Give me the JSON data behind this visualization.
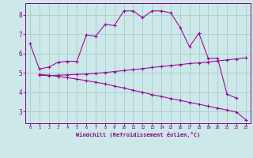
{
  "background_color": "#cce8e8",
  "grid_color": "#aacccc",
  "line_color": "#990099",
  "xlabel": "Windchill (Refroidissement éolien,°C)",
  "xlabel_color": "#880088",
  "tick_color": "#880088",
  "spine_color": "#880088",
  "xlim": [
    -0.5,
    23.5
  ],
  "ylim": [
    2.4,
    8.6
  ],
  "yticks": [
    3,
    4,
    5,
    6,
    7,
    8
  ],
  "xticks": [
    0,
    1,
    2,
    3,
    4,
    5,
    6,
    7,
    8,
    9,
    10,
    11,
    12,
    13,
    14,
    15,
    16,
    17,
    18,
    19,
    20,
    21,
    22,
    23
  ],
  "curves": [
    {
      "x": [
        0,
        1,
        2,
        3,
        4,
        5,
        6,
        7,
        8,
        9,
        10,
        11,
        12,
        13,
        14,
        15,
        16,
        17,
        18,
        19,
        20,
        21,
        22
      ],
      "y": [
        6.5,
        5.2,
        5.3,
        5.55,
        5.6,
        5.6,
        6.95,
        6.9,
        7.5,
        7.45,
        8.2,
        8.2,
        7.85,
        8.2,
        8.2,
        8.1,
        7.35,
        6.35,
        7.05,
        5.75,
        5.75,
        3.9,
        3.7
      ]
    },
    {
      "x": [
        1,
        2,
        3,
        4,
        5,
        6,
        7,
        8,
        9,
        10,
        11,
        12,
        13,
        14,
        15,
        16,
        17,
        18,
        19,
        20,
        21,
        22,
        23
      ],
      "y": [
        4.88,
        4.86,
        4.88,
        4.9,
        4.92,
        4.94,
        4.98,
        5.02,
        5.07,
        5.12,
        5.17,
        5.22,
        5.28,
        5.33,
        5.38,
        5.43,
        5.48,
        5.52,
        5.56,
        5.62,
        5.67,
        5.72,
        5.78
      ]
    },
    {
      "x": [
        1,
        2,
        3,
        4,
        5,
        6,
        7,
        8,
        9,
        10,
        11,
        12,
        13,
        14,
        15,
        16,
        17,
        18,
        19,
        20,
        21,
        22,
        23
      ],
      "y": [
        4.92,
        4.88,
        4.82,
        4.75,
        4.68,
        4.6,
        4.52,
        4.43,
        4.32,
        4.22,
        4.1,
        4.0,
        3.88,
        3.78,
        3.68,
        3.58,
        3.48,
        3.38,
        3.28,
        3.18,
        3.08,
        2.98,
        2.58
      ]
    }
  ]
}
